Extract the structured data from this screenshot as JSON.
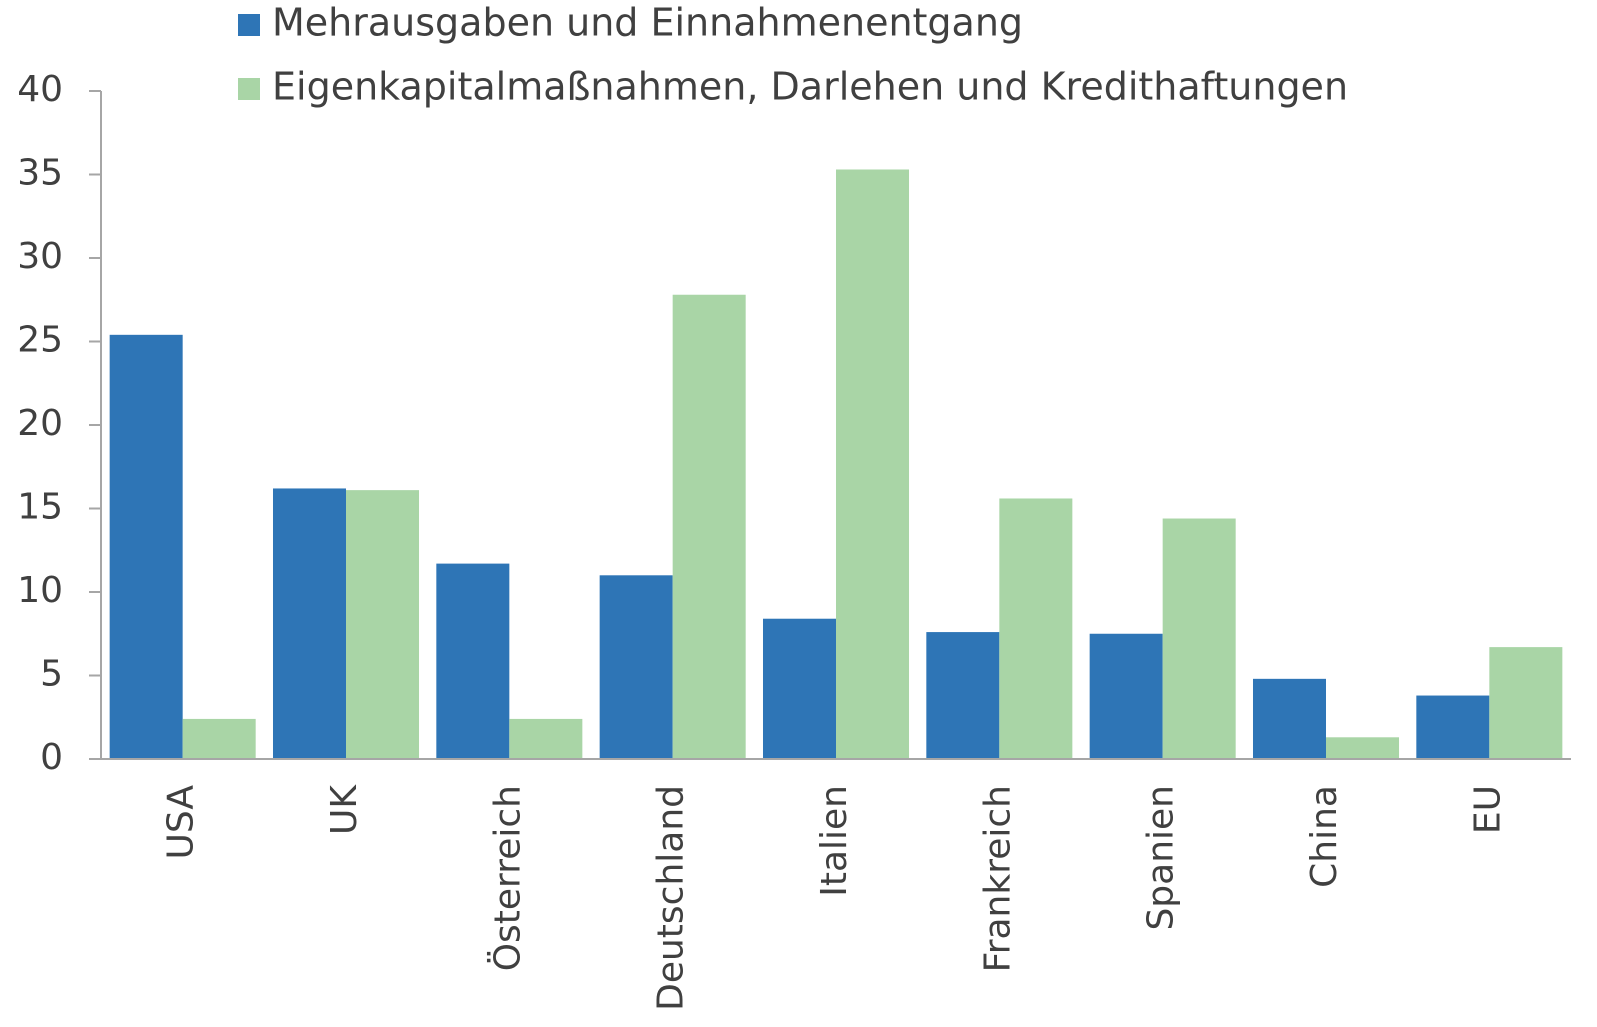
{
  "chart_data": {
    "type": "bar",
    "categories": [
      "USA",
      "UK",
      "Österreich",
      "Deutschland",
      "Italien",
      "Frankreich",
      "Spanien",
      "China",
      "EU"
    ],
    "series": [
      {
        "name": "Mehrausgaben und Einnahmenentgang",
        "color": "#2e75b6",
        "values": [
          25.4,
          16.2,
          11.7,
          11.0,
          8.4,
          7.6,
          7.5,
          4.8,
          3.8
        ]
      },
      {
        "name": "Eigenkapitalmaßnahmen, Darlehen und Kredithaftungen",
        "color": "#a9d5a6",
        "values": [
          2.4,
          16.1,
          2.4,
          27.8,
          35.3,
          15.6,
          14.4,
          1.3,
          6.7
        ]
      }
    ],
    "ylim": [
      0,
      40
    ],
    "yticks": [
      0,
      5,
      10,
      15,
      20,
      25,
      30,
      35,
      40
    ],
    "grid": false
  }
}
